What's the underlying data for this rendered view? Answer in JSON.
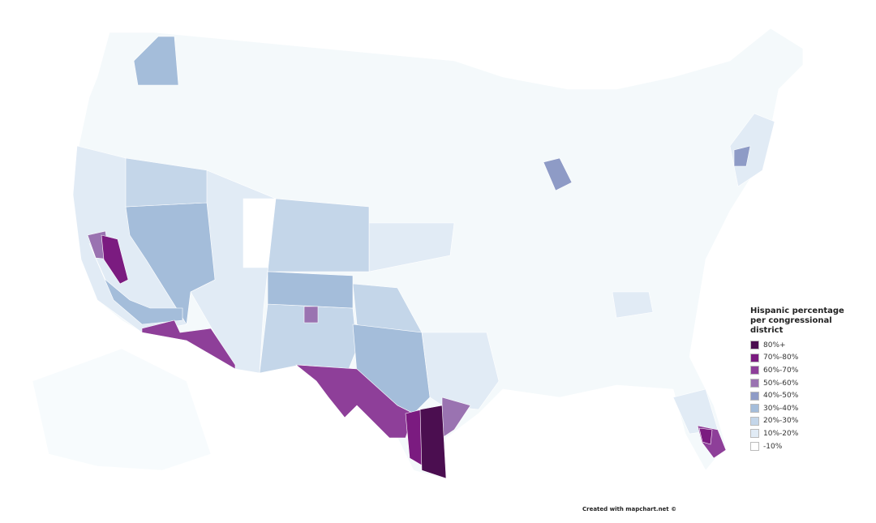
{
  "legend": {
    "title": "Hispanic percentage per congressional district",
    "items": [
      {
        "label": "80%+",
        "color": "#4b0e50"
      },
      {
        "label": "70%-80%",
        "color": "#7b1b80"
      },
      {
        "label": "60%-70%",
        "color": "#8e3f99"
      },
      {
        "label": "50%-60%",
        "color": "#9a73b1"
      },
      {
        "label": "40%-50%",
        "color": "#8e9bc6"
      },
      {
        "label": "30%-40%",
        "color": "#a4bdda"
      },
      {
        "label": "20%-30%",
        "color": "#c4d6e9"
      },
      {
        "label": "10%-20%",
        "color": "#e1ebf5"
      },
      {
        "label": "-10%",
        "color": "#ffffff"
      }
    ]
  },
  "credit": "Created with mapchart.net ©"
}
